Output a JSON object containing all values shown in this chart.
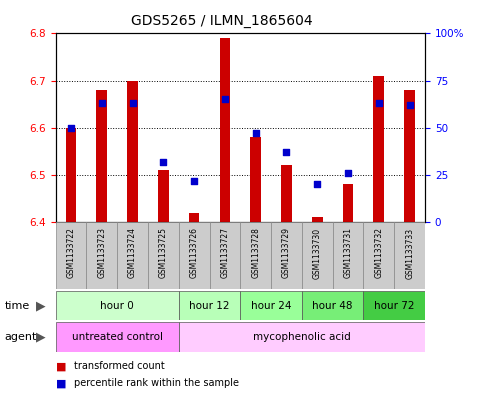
{
  "title": "GDS5265 / ILMN_1865604",
  "samples": [
    "GSM1133722",
    "GSM1133723",
    "GSM1133724",
    "GSM1133725",
    "GSM1133726",
    "GSM1133727",
    "GSM1133728",
    "GSM1133729",
    "GSM1133730",
    "GSM1133731",
    "GSM1133732",
    "GSM1133733"
  ],
  "transformed_counts": [
    6.6,
    6.68,
    6.7,
    6.51,
    6.42,
    6.79,
    6.58,
    6.52,
    6.41,
    6.48,
    6.71,
    6.68
  ],
  "percentile_ranks": [
    50,
    63,
    63,
    32,
    22,
    65,
    47,
    37,
    20,
    26,
    63,
    62
  ],
  "ylim_left": [
    6.4,
    6.8
  ],
  "ylim_right": [
    0,
    100
  ],
  "yticks_left": [
    6.4,
    6.5,
    6.6,
    6.7,
    6.8
  ],
  "yticks_right": [
    0,
    25,
    50,
    75,
    100
  ],
  "ytick_labels_right": [
    "0",
    "25",
    "50",
    "75",
    "100%"
  ],
  "bar_color": "#cc0000",
  "dot_color": "#0000cc",
  "bar_bottom": 6.4,
  "time_groups": [
    {
      "label": "hour 0",
      "start": 0,
      "end": 3
    },
    {
      "label": "hour 12",
      "start": 4,
      "end": 5
    },
    {
      "label": "hour 24",
      "start": 6,
      "end": 7
    },
    {
      "label": "hour 48",
      "start": 8,
      "end": 9
    },
    {
      "label": "hour 72",
      "start": 10,
      "end": 11
    }
  ],
  "time_colors": [
    "#ccffcc",
    "#b8ffb8",
    "#99ff99",
    "#77ee77",
    "#44cc44"
  ],
  "agent_groups": [
    {
      "label": "untreated control",
      "start": 0,
      "end": 3
    },
    {
      "label": "mycophenolic acid",
      "start": 4,
      "end": 11
    }
  ],
  "agent_colors": [
    "#ff99ff",
    "#ffccff"
  ],
  "time_label": "time",
  "agent_label": "agent",
  "legend_bar_label": "transformed count",
  "legend_dot_label": "percentile rank within the sample",
  "sample_bg_color": "#cccccc",
  "bar_width": 0.35,
  "dot_size": 25,
  "title_fontsize": 10,
  "axis_fontsize": 7.5,
  "label_fontsize": 7.5,
  "sample_fontsize": 5.5
}
